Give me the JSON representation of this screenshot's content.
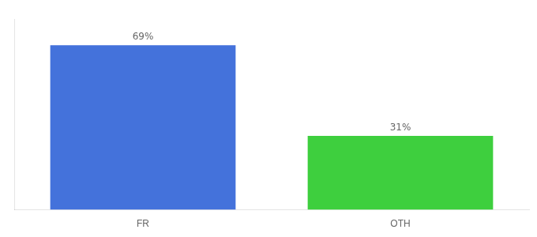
{
  "chart_data": {
    "type": "bar",
    "categories": [
      "FR",
      "OTH"
    ],
    "values": [
      69,
      31
    ],
    "value_labels": [
      "69%",
      "31%"
    ],
    "colors": [
      "#4472db",
      "#3ecf3e"
    ],
    "ylim": [
      0,
      80
    ],
    "grid": false,
    "data_labels": true,
    "tick_labels": "x"
  }
}
